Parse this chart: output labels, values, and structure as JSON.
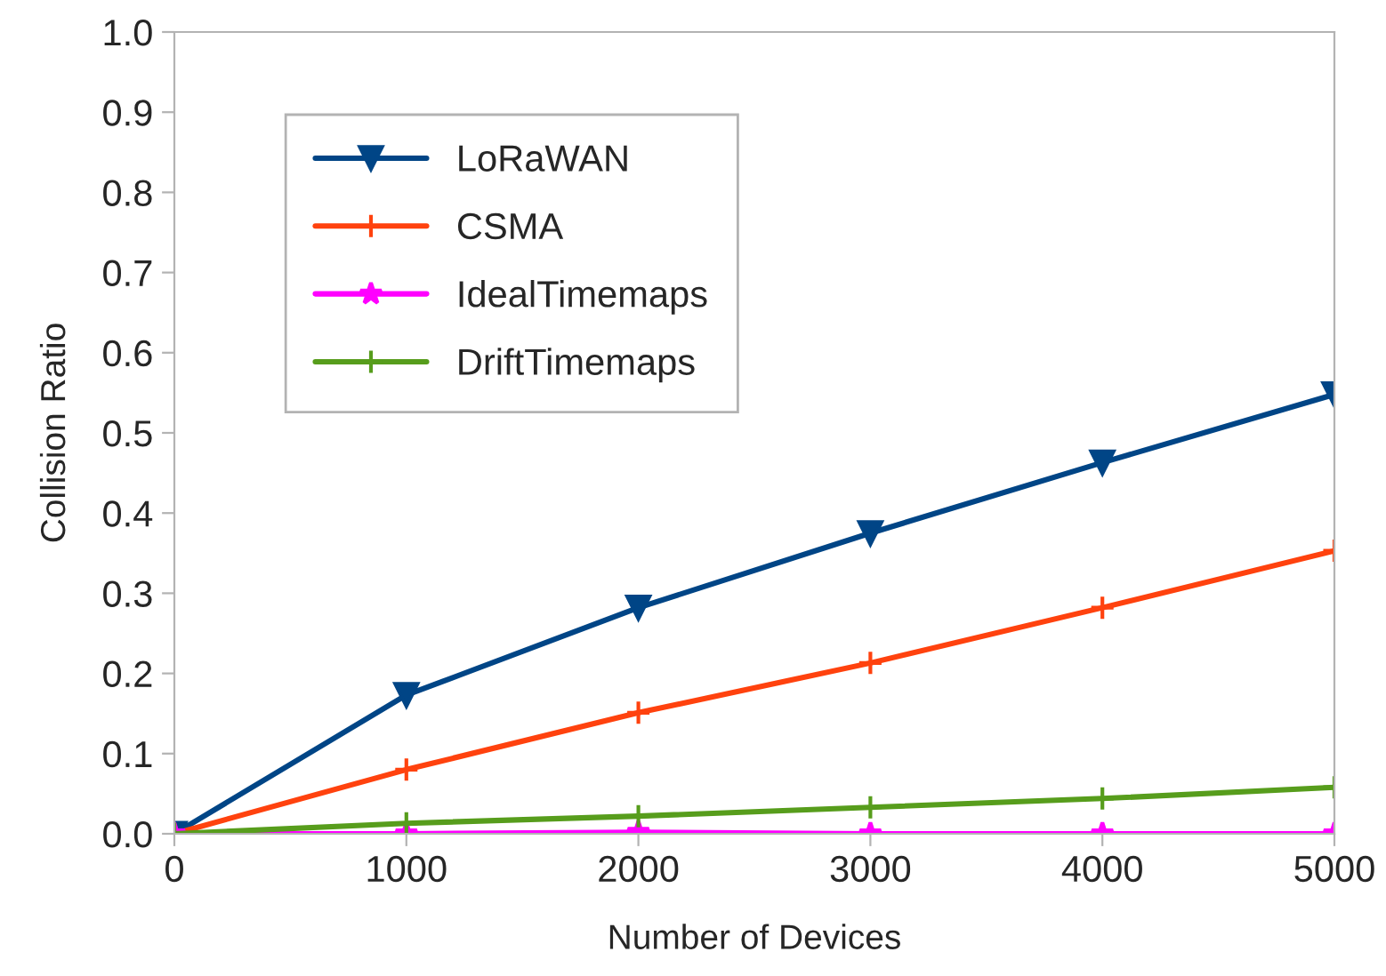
{
  "chart_data": {
    "type": "line",
    "xlabel": "Number of Devices",
    "ylabel": "Collision Ratio",
    "x": [
      0,
      1000,
      2000,
      3000,
      4000,
      5000
    ],
    "series": [
      {
        "name": "LoRaWAN",
        "color": "#004586",
        "marker": "triangle",
        "values": [
          0,
          0.173,
          0.282,
          0.375,
          0.463,
          0.548
        ]
      },
      {
        "name": "CSMA",
        "color": "#ff420e",
        "marker": "cross",
        "values": [
          0,
          0.08,
          0.151,
          0.213,
          0.282,
          0.353
        ]
      },
      {
        "name": "IdealTimemaps",
        "color": "#ff00ff",
        "marker": "star",
        "values": [
          0,
          0,
          0.002,
          0,
          0,
          0
        ]
      },
      {
        "name": "DriftTimemaps",
        "color": "#579d1c",
        "marker": "cross",
        "values": [
          0,
          0.013,
          0.022,
          0.033,
          0.044,
          0.058
        ]
      }
    ],
    "xlim": [
      0,
      5000
    ],
    "xticks": [
      0,
      1000,
      2000,
      3000,
      4000,
      5000
    ],
    "ylim": [
      0,
      1
    ],
    "yticks": [
      {
        "value": 0,
        "label": "0.0"
      },
      {
        "value": 0.1,
        "label": "0.1"
      },
      {
        "value": 0.2,
        "label": "0.2"
      },
      {
        "value": 0.3,
        "label": "0.3"
      },
      {
        "value": 0.4,
        "label": "0.4"
      },
      {
        "value": 0.5,
        "label": "0.5"
      },
      {
        "value": 0.6,
        "label": "0.6"
      },
      {
        "value": 0.7,
        "label": "0.7"
      },
      {
        "value": 0.8,
        "label": "0.8"
      },
      {
        "value": 0.9,
        "label": "0.9"
      },
      {
        "value": 1,
        "label": "1.0"
      }
    ],
    "grid": false,
    "legend": "top left",
    "line_style": "solid"
  }
}
